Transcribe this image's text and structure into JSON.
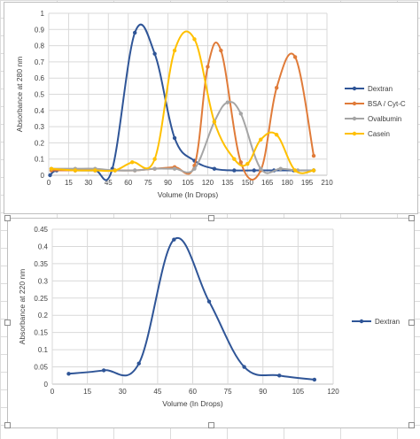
{
  "chart_data": [
    {
      "type": "line",
      "title": "",
      "xlabel": "Volume (In Drops)",
      "ylabel": "Absorbance at 280 nm",
      "xlim": [
        0,
        210
      ],
      "ylim": [
        0,
        1
      ],
      "x_ticks": [
        "0",
        "15",
        "30",
        "45",
        "60",
        "75",
        "90",
        "105",
        "120",
        "135",
        "150",
        "165",
        "180",
        "195",
        "210"
      ],
      "y_ticks": [
        "0",
        "0.1",
        "0.2",
        "0.3",
        "0.4",
        "0.5",
        "0.6",
        "0.7",
        "0.8",
        "0.9",
        "1"
      ],
      "grid": true,
      "legend_position": "right",
      "series": [
        {
          "name": "Dextran",
          "color": "#2f5597",
          "points": [
            [
              1,
              0.0
            ],
            [
              6,
              0.03
            ],
            [
              20,
              0.03
            ],
            [
              35,
              0.03
            ],
            [
              48,
              0.04
            ],
            [
              65,
              0.88
            ],
            [
              80,
              0.75
            ],
            [
              95,
              0.23
            ],
            [
              110,
              0.09
            ],
            [
              125,
              0.04
            ],
            [
              140,
              0.03
            ],
            [
              155,
              0.03
            ],
            [
              170,
              0.03
            ],
            [
              185,
              0.03
            ],
            [
              200,
              0.03
            ]
          ]
        },
        {
          "name": "BSA / Cyt-C",
          "color": "#e07b39",
          "points": [
            [
              2,
              0.03
            ],
            [
              20,
              0.03
            ],
            [
              35,
              0.03
            ],
            [
              50,
              0.03
            ],
            [
              65,
              0.03
            ],
            [
              80,
              0.04
            ],
            [
              95,
              0.05
            ],
            [
              110,
              0.06
            ],
            [
              120,
              0.67
            ],
            [
              130,
              0.77
            ],
            [
              145,
              0.08
            ],
            [
              160,
              0.03
            ],
            [
              172,
              0.54
            ],
            [
              186,
              0.73
            ],
            [
              200,
              0.12
            ]
          ]
        },
        {
          "name": "Ovalbumin",
          "color": "#a5a5a5",
          "points": [
            [
              2,
              0.04
            ],
            [
              20,
              0.04
            ],
            [
              35,
              0.04
            ],
            [
              50,
              0.03
            ],
            [
              65,
              0.03
            ],
            [
              80,
              0.04
            ],
            [
              95,
              0.04
            ],
            [
              110,
              0.04
            ],
            [
              125,
              0.33
            ],
            [
              135,
              0.45
            ],
            [
              145,
              0.38
            ],
            [
              160,
              0.04
            ],
            [
              175,
              0.04
            ],
            [
              188,
              0.03
            ],
            [
              200,
              0.03
            ]
          ]
        },
        {
          "name": "Casein",
          "color": "#ffc000",
          "points": [
            [
              2,
              0.04
            ],
            [
              20,
              0.03
            ],
            [
              35,
              0.03
            ],
            [
              50,
              0.03
            ],
            [
              63,
              0.08
            ],
            [
              80,
              0.1
            ],
            [
              95,
              0.77
            ],
            [
              110,
              0.84
            ],
            [
              125,
              0.33
            ],
            [
              140,
              0.1
            ],
            [
              150,
              0.07
            ],
            [
              160,
              0.22
            ],
            [
              172,
              0.25
            ],
            [
              186,
              0.03
            ],
            [
              200,
              0.03
            ]
          ]
        }
      ]
    },
    {
      "type": "line",
      "title": "",
      "xlabel": "Volume (In Drops)",
      "ylabel": "Absorbance at 220 nm",
      "xlim": [
        0,
        120
      ],
      "ylim": [
        0,
        0.45
      ],
      "x_ticks": [
        "0",
        "15",
        "30",
        "45",
        "60",
        "75",
        "90",
        "105",
        "120"
      ],
      "y_ticks": [
        "0",
        "0.05",
        "0.1",
        "0.15",
        "0.2",
        "0.25",
        "0.3",
        "0.35",
        "0.4",
        "0.45"
      ],
      "grid": true,
      "legend_position": "right",
      "series": [
        {
          "name": "Dextran",
          "color": "#2f5597",
          "points": [
            [
              7,
              0.03
            ],
            [
              22,
              0.04
            ],
            [
              37,
              0.06
            ],
            [
              52,
              0.42
            ],
            [
              67,
              0.24
            ],
            [
              82,
              0.05
            ],
            [
              97,
              0.025
            ],
            [
              112,
              0.013
            ]
          ]
        }
      ]
    }
  ]
}
